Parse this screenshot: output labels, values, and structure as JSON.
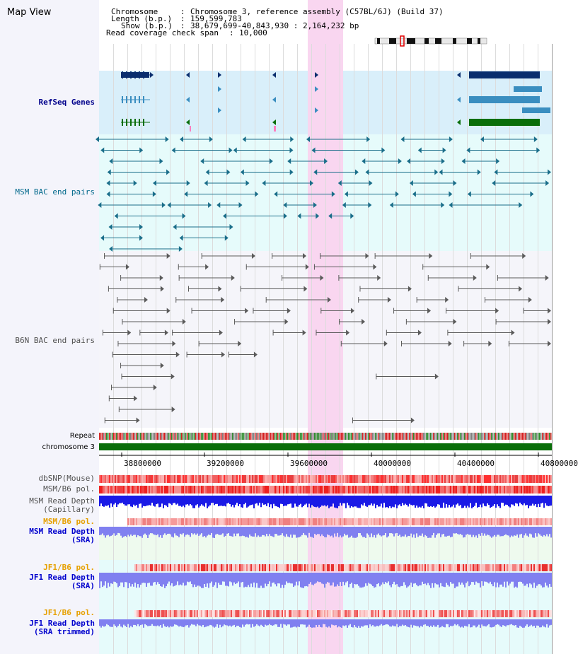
{
  "page": {
    "title": "Map View"
  },
  "header": {
    "chromosome_label": "Chromosome",
    "chromosome_value": "Chromosome 3, reference assembly (C57BL/6J) (Build 37)",
    "length_label": "Length (b.p.)",
    "length_value": "159,599,783",
    "show_label": "Show (b.p.)",
    "show_value": "38,679,699-40,843,930 : 2,164,232 bp",
    "span_label": "Read coverage check span",
    "span_value": "10,000",
    "sep": ":"
  },
  "tracks": {
    "refseq": "RefSeq Genes",
    "msm_bac": "MSM BAC end pairs",
    "b6n_bac": "B6N BAC end pairs",
    "repeat": "Repeat",
    "chrom": "chromosome 3",
    "dbsnp": "dbSNP(Mouse)",
    "msm_pol1": "MSM/B6 pol.",
    "msm_depth_cap1": "MSM Read Depth",
    "msm_depth_cap2": "(Capillary)",
    "msm_pol2": "MSM/B6 pol.",
    "msm_depth_sra1": "MSM Read Depth",
    "msm_depth_sra2": "(SRA)",
    "jf1_pol1": "JF1/B6 pol.",
    "jf1_depth_sra1": "JF1 Read Depth",
    "jf1_depth_sra2": "(SRA)",
    "jf1_pol2": "JF1/B6 pol.",
    "jf1_depth_trim1": "JF1 Read Depth",
    "jf1_depth_trim2": "(SRA trimmed)"
  },
  "axis": {
    "ticks": [
      "38800000",
      "39200000",
      "39600000",
      "40000000",
      "40400000",
      "40800000"
    ]
  },
  "colors": {
    "refseq_bg": "#d9effa",
    "bac_bg": "#e6fbfb",
    "highlight": "#f9d6f0",
    "chrom_green": "#0a6e0a",
    "depth_blue": "#1a1ae6",
    "depth_lav": "#8080f0",
    "snp_red": "#f03030"
  }
}
